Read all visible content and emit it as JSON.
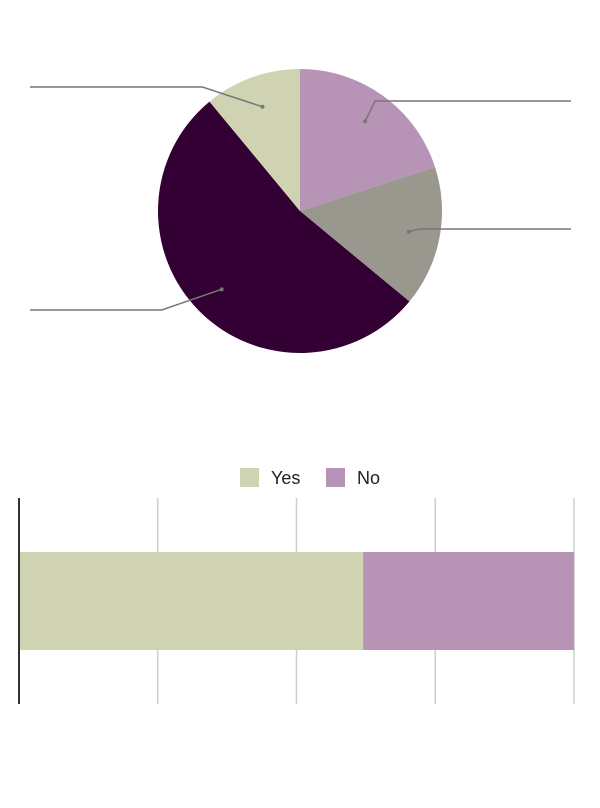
{
  "chart_data": [
    {
      "type": "pie",
      "slices": [
        {
          "value": 20,
          "color": "#b794b6"
        },
        {
          "value": 16,
          "color": "#9a978f"
        },
        {
          "value": 53,
          "color": "#330033"
        },
        {
          "value": 11,
          "color": "#cfd3b2"
        }
      ],
      "start_angle_deg": 0,
      "direction": "clockwise",
      "data_labels_visible": false
    },
    {
      "type": "bar",
      "orientation": "horizontal",
      "stacked": true,
      "series": [
        {
          "name": "Yes",
          "value": 62,
          "color": "#cfd3b2"
        },
        {
          "name": "No",
          "value": 38,
          "color": "#b794b6"
        }
      ],
      "xlim": [
        0,
        100
      ],
      "grid": true,
      "legend_position": "top",
      "tick_labels_visible": false
    }
  ]
}
